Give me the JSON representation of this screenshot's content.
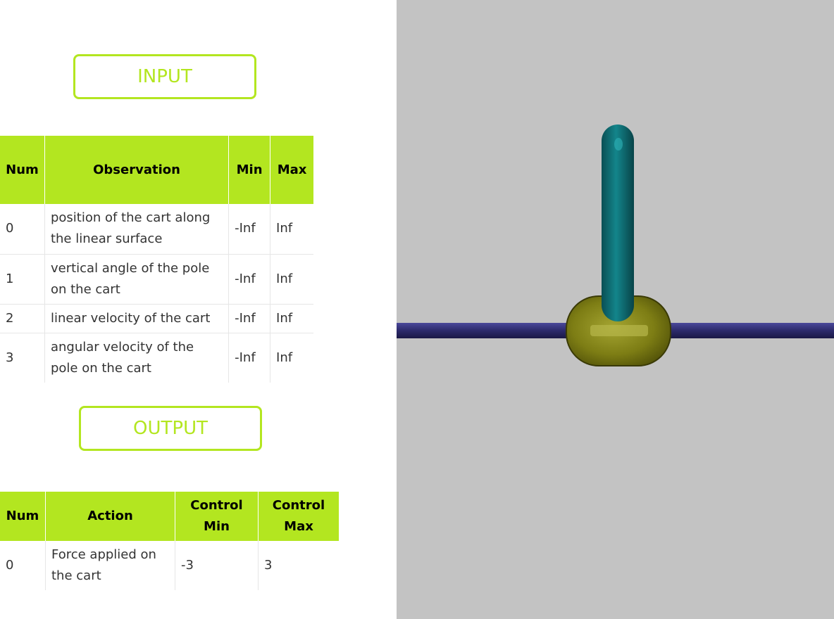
{
  "input_section": {
    "label": "INPUT"
  },
  "observation_table": {
    "headers": [
      "Num",
      "Observation",
      "Min",
      "Max"
    ],
    "rows": [
      {
        "num": "0",
        "observation": "position of the cart along the linear surface",
        "min": "-Inf",
        "max": "Inf"
      },
      {
        "num": "1",
        "observation": "vertical angle of the pole on the cart",
        "min": "-Inf",
        "max": "Inf"
      },
      {
        "num": "2",
        "observation": "linear velocity of the cart",
        "min": "-Inf",
        "max": "Inf"
      },
      {
        "num": "3",
        "observation": "angular velocity of the pole on the cart",
        "min": "-Inf",
        "max": "Inf"
      }
    ]
  },
  "output_section": {
    "label": "OUTPUT"
  },
  "action_table": {
    "headers": [
      "Num",
      "Action",
      "Control Min",
      "Control Max"
    ],
    "rows": [
      {
        "num": "0",
        "action": "Force applied on the cart",
        "control_min": "-3",
        "control_max": "3"
      }
    ]
  },
  "simulation_view": {
    "colors": {
      "background": "#c3c3c3",
      "rail": "#2c2a6b",
      "cart": "#7d7d14",
      "pole": "#0e6f74"
    }
  }
}
